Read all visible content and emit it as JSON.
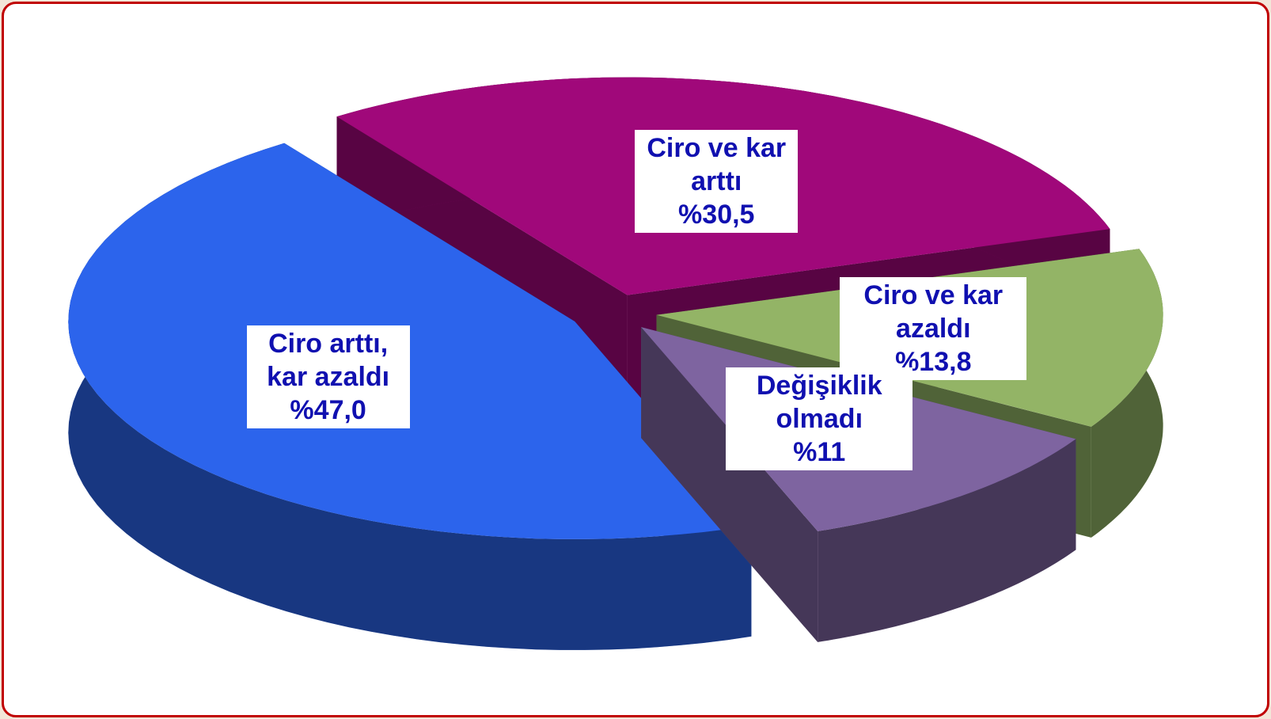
{
  "chart_data": {
    "type": "pie3d",
    "categories": [
      "Ciro ve kar arttı",
      "Ciro ve kar azaldı",
      "Değişiklik olmadı",
      "Ciro arttı, kar azaldı"
    ],
    "values": [
      30.5,
      13.8,
      11,
      47.0
    ],
    "value_labels": [
      "%30,5",
      "%13,8",
      "%11",
      "%47,0"
    ],
    "colors": [
      "#a0087a",
      "#93b466",
      "#7e64a0",
      "#2c64ec"
    ]
  }
}
